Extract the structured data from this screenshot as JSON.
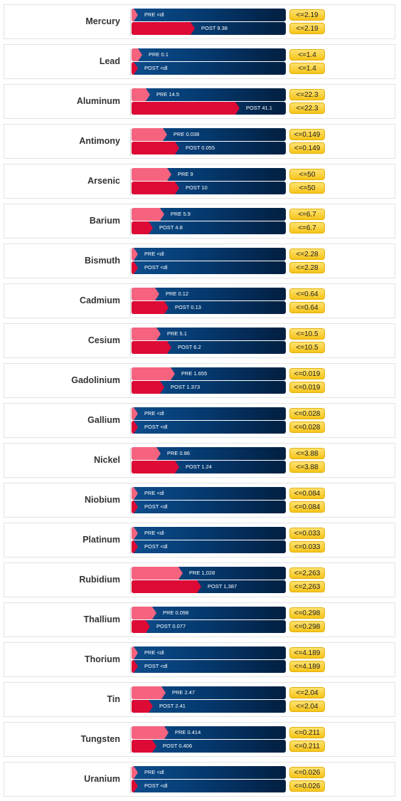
{
  "chart_data": {
    "type": "bar",
    "series": [
      {
        "name": "PRE"
      },
      {
        "name": "POST"
      }
    ],
    "colors": {
      "pre": "#f5637f",
      "post": "#dd0a35",
      "track": "#053a70",
      "limit_badge": "#f6c419"
    },
    "rows": [
      {
        "label": "Mercury",
        "pre_text": "PRE <dl",
        "post_text": "POST 9.38",
        "pre_fill": 0.0,
        "post_fill": 0.41,
        "limit": "<=2.19"
      },
      {
        "label": "Lead",
        "pre_text": "PRE 0.1",
        "post_text": "POST <dl",
        "pre_fill": 0.07,
        "post_fill": 0.0,
        "limit": "<=1.4"
      },
      {
        "label": "Aluminum",
        "pre_text": "PRE 14.5",
        "post_text": "POST 41.1",
        "pre_fill": 0.12,
        "post_fill": 0.7,
        "limit": "<=22.3"
      },
      {
        "label": "Antimony",
        "pre_text": "PRE 0.038",
        "post_text": "POST 0.055",
        "pre_fill": 0.23,
        "post_fill": 0.31,
        "limit": "<=0.149"
      },
      {
        "label": "Arsenic",
        "pre_text": "PRE 9",
        "post_text": "POST 10",
        "pre_fill": 0.26,
        "post_fill": 0.31,
        "limit": "<=50"
      },
      {
        "label": "Barium",
        "pre_text": "PRE 5.9",
        "post_text": "POST 4.8",
        "pre_fill": 0.21,
        "post_fill": 0.14,
        "limit": "<=6.7"
      },
      {
        "label": "Bismuth",
        "pre_text": "PRE <dl",
        "post_text": "POST <dl",
        "pre_fill": 0.0,
        "post_fill": 0.0,
        "limit": "<=2.28"
      },
      {
        "label": "Cadmium",
        "pre_text": "PRE 0.12",
        "post_text": "POST 0.13",
        "pre_fill": 0.18,
        "post_fill": 0.24,
        "limit": "<=0.64"
      },
      {
        "label": "Cesium",
        "pre_text": "PRE 5.1",
        "post_text": "POST 6.2",
        "pre_fill": 0.19,
        "post_fill": 0.26,
        "limit": "<=10.5"
      },
      {
        "label": "Gadolinium",
        "pre_text": "PRE 1.655",
        "post_text": "POST 1.373",
        "pre_fill": 0.28,
        "post_fill": 0.21,
        "limit": "<=0.019"
      },
      {
        "label": "Gallium",
        "pre_text": "PRE <dl",
        "post_text": "POST <dl",
        "pre_fill": 0.0,
        "post_fill": 0.0,
        "limit": "<=0.028"
      },
      {
        "label": "Nickel",
        "pre_text": "PRE 0.86",
        "post_text": "POST 1.24",
        "pre_fill": 0.19,
        "post_fill": 0.31,
        "limit": "<=3.88"
      },
      {
        "label": "Niobium",
        "pre_text": "PRE <dl",
        "post_text": "POST <dl",
        "pre_fill": 0.0,
        "post_fill": 0.0,
        "limit": "<=0.084"
      },
      {
        "label": "Platinum",
        "pre_text": "PRE <dl",
        "post_text": "POST <dl",
        "pre_fill": 0.0,
        "post_fill": 0.0,
        "limit": "<=0.033"
      },
      {
        "label": "Rubidium",
        "pre_text": "PRE 1,028",
        "post_text": "POST 1,387",
        "pre_fill": 0.33,
        "post_fill": 0.45,
        "limit": "<=2,263"
      },
      {
        "label": "Thallium",
        "pre_text": "PRE 0.098",
        "post_text": "POST 0.077",
        "pre_fill": 0.16,
        "post_fill": 0.12,
        "limit": "<=0.298"
      },
      {
        "label": "Thorium",
        "pre_text": "PRE <dl",
        "post_text": "POST <dl",
        "pre_fill": 0.0,
        "post_fill": 0.0,
        "limit": "<=4.189"
      },
      {
        "label": "Tin",
        "pre_text": "PRE 2.47",
        "post_text": "POST 2.41",
        "pre_fill": 0.22,
        "post_fill": 0.14,
        "limit": "<=2.04"
      },
      {
        "label": "Tungsten",
        "pre_text": "PRE 0.414",
        "post_text": "POST 0.406",
        "pre_fill": 0.24,
        "post_fill": 0.16,
        "limit": "<=0.211"
      },
      {
        "label": "Uranium",
        "pre_text": "PRE <dl",
        "post_text": "POST <dl",
        "pre_fill": 0.0,
        "post_fill": 0.0,
        "limit": "<=0.026"
      }
    ]
  }
}
